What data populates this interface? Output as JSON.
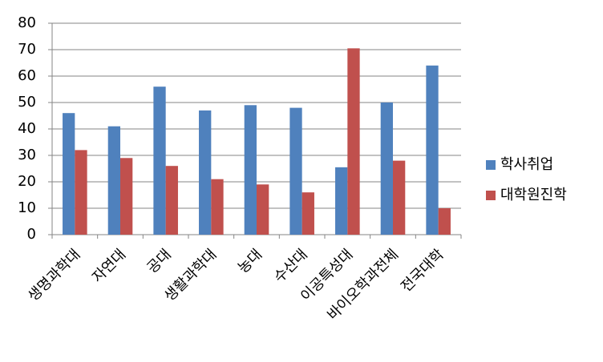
{
  "chart_data": {
    "type": "bar",
    "categories": [
      "생명과학대",
      "자연대",
      "공대",
      "생활과학대",
      "농대",
      "수산대",
      "이공특성대",
      "바이오학과전체",
      "전국대학"
    ],
    "series": [
      {
        "name": "학사취업",
        "color": "#4f81bd",
        "values": [
          46,
          41,
          56,
          47,
          49,
          48,
          25.5,
          50,
          64
        ]
      },
      {
        "name": "대학원진학",
        "color": "#c0504d",
        "values": [
          32,
          29,
          26,
          21,
          19,
          16,
          70.5,
          28,
          10
        ]
      }
    ],
    "ylim": [
      0,
      80
    ],
    "yticks": [
      0,
      10,
      20,
      30,
      40,
      50,
      60,
      70,
      80
    ],
    "grid": true,
    "legend": "right"
  }
}
